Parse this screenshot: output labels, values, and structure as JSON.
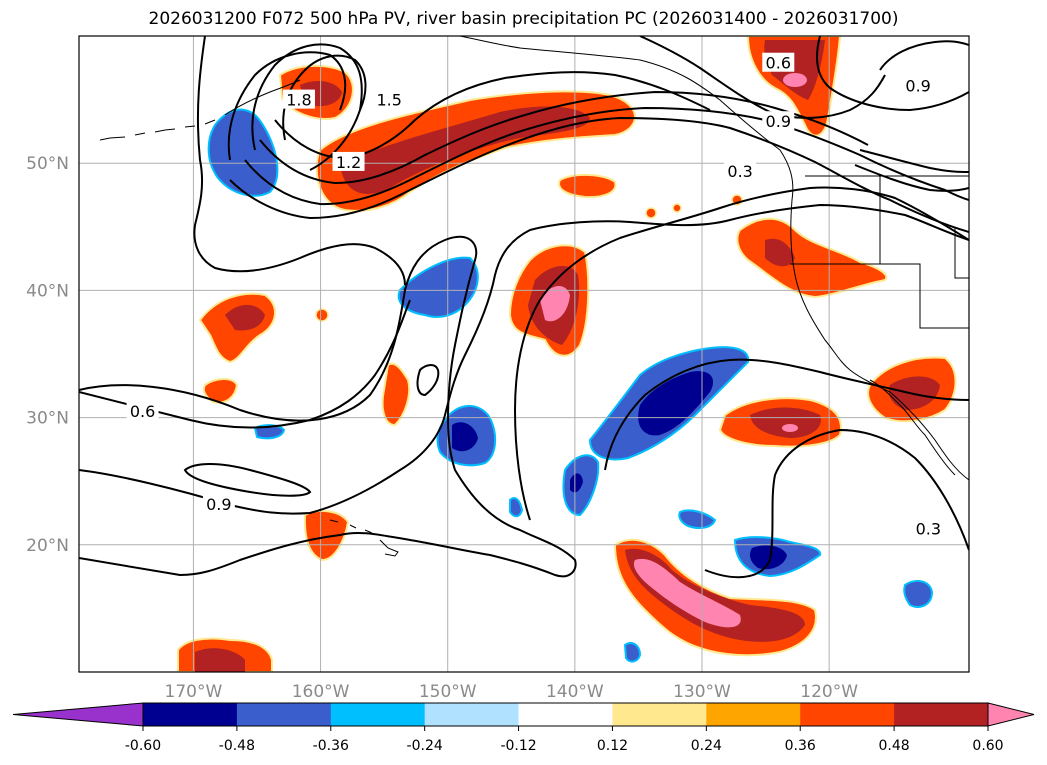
{
  "title": "2026031200 F072 500 hPa PV, river basin precipitation PC (2026031400 - 2026031700)",
  "map": {
    "lon_range": [
      -179.0,
      -109.0
    ],
    "lat_range": [
      10.0,
      60.0
    ],
    "lon_ticks": [
      {
        "lon": -170,
        "label": "170°W"
      },
      {
        "lon": -160,
        "label": "160°W"
      },
      {
        "lon": -150,
        "label": "150°W"
      },
      {
        "lon": -140,
        "label": "140°W"
      },
      {
        "lon": -130,
        "label": "130°W"
      },
      {
        "lon": -120,
        "label": "120°W"
      }
    ],
    "lat_ticks": [
      {
        "lat": 50,
        "label": "50°N"
      },
      {
        "lat": 40,
        "label": "40°N"
      },
      {
        "lat": 30,
        "label": "30°N"
      },
      {
        "lat": 20,
        "label": "20°N"
      }
    ],
    "pv_contour_labels": [
      {
        "text": "0.6",
        "lon": -124.0,
        "lat": 57.9
      },
      {
        "text": "0.9",
        "lon": -124.0,
        "lat": 53.3
      },
      {
        "text": "0.9",
        "lon": -113.0,
        "lat": 56.1
      },
      {
        "text": "0.3",
        "lon": -127.0,
        "lat": 49.4
      },
      {
        "text": "1.8",
        "lon": -161.7,
        "lat": 55.0
      },
      {
        "text": "1.5",
        "lon": -154.6,
        "lat": 55.0
      },
      {
        "text": "1.2",
        "lon": -157.8,
        "lat": 50.1
      },
      {
        "text": "0.6",
        "lon": -174.0,
        "lat": 30.5
      },
      {
        "text": "0.9",
        "lon": -168.0,
        "lat": 23.2
      },
      {
        "text": "0.3",
        "lon": -112.2,
        "lat": 21.3
      }
    ]
  },
  "colorbar": {
    "ticks": [
      "-0.60",
      "-0.48",
      "-0.36",
      "-0.24",
      "-0.12",
      "0.12",
      "0.24",
      "0.36",
      "0.48",
      "0.60"
    ],
    "under_color": "#9932cc",
    "over_color": "#ff85b0",
    "bin_colors": [
      "#000090",
      "#3a5fcd",
      "#00bfff",
      "#b0e2ff",
      "#ffffff",
      "#ffe88e",
      "#ffa500",
      "#ff4500",
      "#b22222"
    ]
  }
}
